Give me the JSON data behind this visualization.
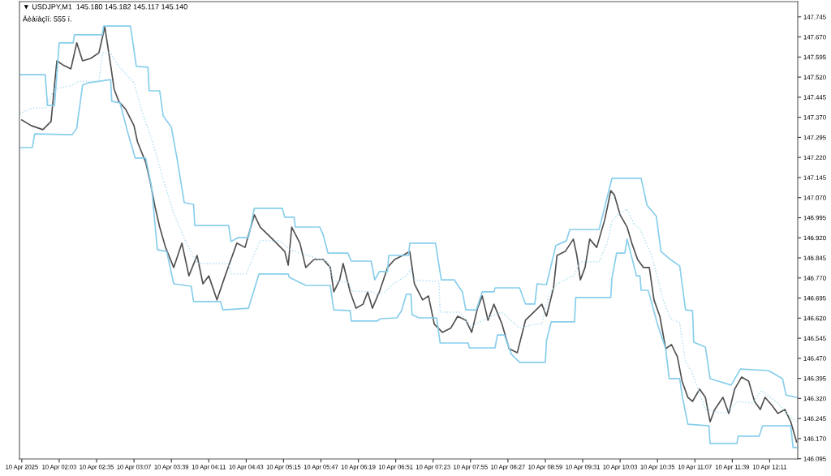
{
  "chart_data": {
    "type": "line",
    "title": "▼ USDJPY,M1  145.180 145.182 145.117 145.140",
    "subtitle": "Äèàïàçîí: 555 ï.",
    "series": [
      {
        "color": "#505050",
        "line_style": "solid",
        "x": [
          "2025-04-10T01:31",
          "2025-04-10T01:39",
          "2025-04-10T01:49",
          "2025-04-10T01:56",
          "2025-04-10T02:01",
          "2025-04-10T02:06",
          "2025-04-10T02:13",
          "2025-04-10T02:18",
          "2025-04-10T02:23",
          "2025-04-10T02:30",
          "2025-04-10T02:37",
          "2025-04-10T02:42",
          "2025-04-10T02:47",
          "2025-04-10T02:50",
          "2025-04-10T02:54",
          "2025-04-10T03:00",
          "2025-04-10T03:07",
          "2025-04-10T03:10",
          "2025-04-10T03:17",
          "2025-04-10T03:21",
          "2025-04-10T03:25",
          "2025-04-10T03:29",
          "2025-04-10T03:34",
          "2025-04-10T03:41",
          "2025-04-10T03:48",
          "2025-04-10T03:54",
          "2025-04-10T04:01",
          "2025-04-10T04:06",
          "2025-04-10T04:11",
          "2025-04-10T04:18",
          "2025-04-10T04:25",
          "2025-04-10T04:30",
          "2025-04-10T04:35",
          "2025-04-10T04:42",
          "2025-04-10T04:50",
          "2025-04-10T04:55",
          "2025-04-10T05:02",
          "2025-04-10T05:09",
          "2025-04-10T05:16",
          "2025-04-10T05:19",
          "2025-04-10T05:22",
          "2025-04-10T05:29",
          "2025-04-10T05:34",
          "2025-04-10T05:41",
          "2025-04-10T05:49",
          "2025-04-10T05:55",
          "2025-04-10T05:58",
          "2025-04-10T06:03",
          "2025-04-10T06:06",
          "2025-04-10T06:12",
          "2025-04-10T06:17",
          "2025-04-10T06:23",
          "2025-04-10T06:27",
          "2025-04-10T06:31",
          "2025-04-10T06:37",
          "2025-04-10T06:44",
          "2025-04-10T06:50",
          "2025-04-10T06:57",
          "2025-04-10T07:03",
          "2025-04-10T07:07",
          "2025-04-10T07:14",
          "2025-04-10T07:19",
          "2025-04-10T07:24",
          "2025-04-10T07:31",
          "2025-04-10T07:38",
          "2025-04-10T07:44",
          "2025-04-10T07:51",
          "2025-04-10T07:56",
          "2025-04-10T08:01",
          "2025-04-10T08:05",
          "2025-04-10T08:10",
          "2025-04-10T08:15",
          "2025-04-10T08:22",
          "2025-04-10T08:28",
          "2025-04-10T08:35",
          "2025-04-10T08:42",
          "2025-04-10T08:49",
          "2025-04-10T08:56",
          "2025-04-10T09:00",
          "2025-04-10T09:06",
          "2025-04-10T09:09",
          "2025-04-10T09:16",
          "2025-04-10T09:23",
          "2025-04-10T09:26",
          "2025-04-10T09:29",
          "2025-04-10T09:33",
          "2025-04-10T09:37",
          "2025-04-10T09:43",
          "2025-04-10T09:50",
          "2025-04-10T09:55",
          "2025-04-10T09:58",
          "2025-04-10T10:03",
          "2025-04-10T10:09",
          "2025-04-10T10:13",
          "2025-04-10T10:18",
          "2025-04-10T10:23",
          "2025-04-10T10:28",
          "2025-04-10T10:32",
          "2025-04-10T10:37",
          "2025-04-10T10:42",
          "2025-04-10T10:47",
          "2025-04-10T10:52",
          "2025-04-10T10:56",
          "2025-04-10T11:01",
          "2025-04-10T11:05",
          "2025-04-10T11:11",
          "2025-04-10T11:16",
          "2025-04-10T11:20",
          "2025-04-10T11:24",
          "2025-04-10T11:31",
          "2025-04-10T11:36",
          "2025-04-10T11:41",
          "2025-04-10T11:47",
          "2025-04-10T11:53",
          "2025-04-10T11:58",
          "2025-04-10T12:03",
          "2025-04-10T12:07",
          "2025-04-10T12:13",
          "2025-04-10T12:18",
          "2025-04-10T12:24",
          "2025-04-10T12:29",
          "2025-04-10T12:32",
          "2025-04-10T12:34"
        ],
        "values": [
          147.36,
          147.339,
          147.324,
          147.354,
          147.581,
          147.566,
          147.551,
          147.648,
          147.581,
          147.59,
          147.611,
          147.708,
          147.566,
          147.475,
          147.429,
          147.399,
          147.339,
          147.278,
          147.202,
          147.127,
          147.036,
          146.96,
          146.884,
          146.809,
          146.9,
          146.778,
          146.854,
          146.748,
          146.778,
          146.688,
          146.778,
          146.839,
          146.9,
          146.884,
          147.006,
          146.96,
          146.93,
          146.9,
          146.869,
          146.818,
          146.96,
          146.9,
          146.809,
          146.839,
          146.839,
          146.809,
          146.718,
          146.763,
          146.824,
          146.718,
          146.657,
          146.672,
          146.718,
          146.657,
          146.718,
          146.809,
          146.839,
          146.854,
          146.869,
          146.748,
          146.688,
          146.703,
          146.597,
          146.567,
          146.582,
          146.627,
          146.612,
          146.567,
          146.657,
          146.703,
          146.612,
          146.672,
          146.597,
          146.506,
          146.491,
          146.612,
          146.642,
          146.672,
          146.627,
          146.733,
          146.854,
          146.869,
          146.915,
          146.854,
          146.763,
          146.809,
          146.915,
          146.884,
          146.99,
          147.096,
          147.081,
          147.006,
          146.96,
          146.9,
          146.839,
          146.809,
          146.809,
          146.688,
          146.627,
          146.506,
          146.521,
          146.476,
          146.385,
          146.324,
          146.309,
          146.355,
          146.324,
          146.233,
          146.279,
          146.324,
          146.264,
          146.355,
          146.4,
          146.385,
          146.309,
          146.279,
          146.324,
          146.294,
          146.264,
          146.279,
          146.233,
          146.188,
          146.158
        ]
      },
      {
        "color": "#87ceeb",
        "line_style": "solid",
        "x": [
          "2025-04-10T01:29",
          "2025-04-10T01:51",
          "2025-04-10T01:53",
          "2025-04-10T01:59",
          "2025-04-10T02:03",
          "2025-04-10T02:15",
          "2025-04-10T02:16",
          "2025-04-10T02:40",
          "2025-04-10T02:41",
          "2025-04-10T03:04",
          "2025-04-10T03:09",
          "2025-04-10T03:19",
          "2025-04-10T03:20",
          "2025-04-10T03:29",
          "2025-04-10T03:32",
          "2025-04-10T03:39",
          "2025-04-10T03:44",
          "2025-04-10T03:50",
          "2025-04-10T03:58",
          "2025-04-10T03:59",
          "2025-04-10T04:28",
          "2025-04-10T04:30",
          "2025-04-10T04:36",
          "2025-04-10T04:45",
          "2025-04-10T04:50",
          "2025-04-10T05:14",
          "2025-04-10T05:16",
          "2025-04-10T05:24",
          "2025-04-10T05:25",
          "2025-04-10T05:46",
          "2025-04-10T05:49",
          "2025-04-10T05:53",
          "2025-04-10T06:10",
          "2025-04-10T06:13",
          "2025-04-10T06:30",
          "2025-04-10T06:33",
          "2025-04-10T06:37",
          "2025-04-10T06:44",
          "2025-04-10T06:45",
          "2025-04-10T07:02",
          "2025-04-10T07:03",
          "2025-04-10T07:25",
          "2025-04-10T07:30",
          "2025-04-10T07:41",
          "2025-04-10T07:48",
          "2025-04-10T07:51",
          "2025-04-10T08:00",
          "2025-04-10T08:05",
          "2025-04-10T08:15",
          "2025-04-10T08:16",
          "2025-04-10T08:37",
          "2025-04-10T08:42",
          "2025-04-10T08:50",
          "2025-04-10T08:52",
          "2025-04-10T09:00",
          "2025-04-10T09:08",
          "2025-04-10T09:17",
          "2025-04-10T09:20",
          "2025-04-10T09:45",
          "2025-04-10T09:56",
          "2025-04-10T10:21",
          "2025-04-10T10:26",
          "2025-04-10T10:34",
          "2025-04-10T10:38",
          "2025-04-10T10:46",
          "2025-04-10T10:54",
          "2025-04-10T10:59",
          "2025-04-10T11:05",
          "2025-04-10T11:06",
          "2025-04-10T11:16",
          "2025-04-10T11:20",
          "2025-04-10T11:38",
          "2025-04-10T11:46",
          "2025-04-10T12:10",
          "2025-04-10T12:22",
          "2025-04-10T12:25",
          "2025-04-10T12:34"
        ],
        "values": [
          147.529,
          147.529,
          147.414,
          147.414,
          147.648,
          147.648,
          147.678,
          147.678,
          147.711,
          147.711,
          147.56,
          147.557,
          147.469,
          147.469,
          147.375,
          147.333,
          147.212,
          147.051,
          147.045,
          146.966,
          146.966,
          146.906,
          146.921,
          146.921,
          147.03,
          147.03,
          146.997,
          146.997,
          146.96,
          146.96,
          146.93,
          146.863,
          146.863,
          146.833,
          146.833,
          146.763,
          146.794,
          146.794,
          146.854,
          146.854,
          146.9,
          146.9,
          146.763,
          146.763,
          146.718,
          146.651,
          146.651,
          146.718,
          146.718,
          146.733,
          146.733,
          146.673,
          146.673,
          146.748,
          146.745,
          146.891,
          146.909,
          146.951,
          146.951,
          147.142,
          147.142,
          147.042,
          147.0,
          146.869,
          146.839,
          146.815,
          146.651,
          146.648,
          146.53,
          146.512,
          146.394,
          146.37,
          146.43,
          146.424,
          146.394,
          146.333,
          146.324
        ]
      },
      {
        "color": "#87ceeb",
        "line_style": "solid",
        "x": [
          "2025-04-10T01:29",
          "2025-04-10T01:40",
          "2025-04-10T01:42",
          "2025-04-10T02:14",
          "2025-04-10T02:18",
          "2025-04-10T02:23",
          "2025-04-10T02:28",
          "2025-04-10T02:47",
          "2025-04-10T02:48",
          "2025-04-10T02:55",
          "2025-04-10T03:02",
          "2025-04-10T03:08",
          "2025-04-10T03:17",
          "2025-04-10T03:22",
          "2025-04-10T03:27",
          "2025-04-10T03:35",
          "2025-04-10T03:41",
          "2025-04-10T03:56",
          "2025-04-10T03:58",
          "2025-04-10T04:21",
          "2025-04-10T04:23",
          "2025-04-10T04:45",
          "2025-04-10T04:54",
          "2025-04-10T05:19",
          "2025-04-10T05:20",
          "2025-04-10T05:34",
          "2025-04-10T05:55",
          "2025-04-10T05:58",
          "2025-04-10T06:12",
          "2025-04-10T06:13",
          "2025-04-10T06:35",
          "2025-04-10T06:38",
          "2025-04-10T06:52",
          "2025-04-10T06:56",
          "2025-04-10T07:00",
          "2025-04-10T07:04",
          "2025-04-10T07:05",
          "2025-04-10T07:11",
          "2025-04-10T07:26",
          "2025-04-10T07:29",
          "2025-04-10T07:53",
          "2025-04-10T07:54",
          "2025-04-10T08:16",
          "2025-04-10T08:18",
          "2025-04-10T08:24",
          "2025-04-10T08:30",
          "2025-04-10T08:37",
          "2025-04-10T08:59",
          "2025-04-10T09:00",
          "2025-04-10T09:04",
          "2025-04-10T09:24",
          "2025-04-10T09:25",
          "2025-04-10T09:55",
          "2025-04-10T09:56",
          "2025-04-10T10:00",
          "2025-04-10T10:07",
          "2025-04-10T10:09",
          "2025-04-10T10:17",
          "2025-04-10T10:20",
          "2025-04-10T10:21",
          "2025-04-10T10:27",
          "2025-04-10T10:28",
          "2025-04-10T10:35",
          "2025-04-10T10:42",
          "2025-04-10T10:45",
          "2025-04-10T10:54",
          "2025-04-10T10:56",
          "2025-04-10T11:01",
          "2025-04-10T11:19",
          "2025-04-10T11:20",
          "2025-04-10T11:43",
          "2025-04-10T11:44",
          "2025-04-10T12:02",
          "2025-04-10T12:05",
          "2025-04-10T12:29",
          "2025-04-10T12:31",
          "2025-04-10T12:34"
        ],
        "values": [
          147.257,
          147.257,
          147.308,
          147.305,
          147.33,
          147.49,
          147.499,
          147.511,
          147.43,
          147.424,
          147.308,
          147.218,
          147.218,
          147.112,
          146.875,
          146.869,
          146.748,
          146.739,
          146.682,
          146.682,
          146.651,
          146.657,
          146.785,
          146.785,
          146.772,
          146.742,
          146.742,
          146.651,
          146.648,
          146.609,
          146.609,
          146.618,
          146.621,
          146.648,
          146.709,
          146.709,
          146.633,
          146.621,
          146.621,
          146.527,
          146.527,
          146.509,
          146.509,
          146.557,
          146.557,
          146.485,
          146.455,
          146.455,
          146.536,
          146.606,
          146.606,
          146.697,
          146.697,
          146.769,
          146.863,
          146.863,
          146.915,
          146.778,
          146.778,
          146.724,
          146.724,
          146.709,
          146.597,
          146.506,
          146.394,
          146.394,
          146.333,
          146.224,
          146.218,
          146.152,
          146.152,
          146.179,
          146.179,
          146.218,
          146.218,
          146.137,
          146.137
        ]
      },
      {
        "color": "#a8dcf0",
        "line_style": "dotted",
        "x": [
          "2025-04-10T01:29",
          "2025-04-10T01:40",
          "2025-04-10T01:51",
          "2025-04-10T01:59",
          "2025-04-10T02:14",
          "2025-04-10T02:20",
          "2025-04-10T02:37",
          "2025-04-10T02:40",
          "2025-04-10T02:47",
          "2025-04-10T02:53",
          "2025-04-10T03:07",
          "2025-04-10T03:14",
          "2025-04-10T03:24",
          "2025-04-10T03:31",
          "2025-04-10T03:41",
          "2025-04-10T03:51",
          "2025-04-10T04:01",
          "2025-04-10T04:28",
          "2025-04-10T04:30",
          "2025-04-10T04:43",
          "2025-04-10T04:50",
          "2025-04-10T04:55",
          "2025-04-10T05:12",
          "2025-04-10T05:21",
          "2025-04-10T05:29",
          "2025-04-10T05:53",
          "2025-04-10T05:58",
          "2025-04-10T06:11",
          "2025-04-10T06:13",
          "2025-04-10T06:31",
          "2025-04-10T06:35",
          "2025-04-10T06:42",
          "2025-04-10T06:49",
          "2025-04-10T07:00",
          "2025-04-10T07:04",
          "2025-04-10T07:06",
          "2025-04-10T07:28",
          "2025-04-10T07:29",
          "2025-04-10T07:46",
          "2025-04-10T07:55",
          "2025-04-10T08:03",
          "2025-04-10T08:13",
          "2025-04-10T08:22",
          "2025-04-10T08:28",
          "2025-04-10T08:37",
          "2025-04-10T08:49",
          "2025-04-10T08:56",
          "2025-04-10T09:02",
          "2025-04-10T09:09",
          "2025-04-10T09:23",
          "2025-04-10T09:29",
          "2025-04-10T09:45",
          "2025-04-10T09:52",
          "2025-04-10T09:56",
          "2025-04-10T10:01",
          "2025-04-10T10:09",
          "2025-04-10T10:15",
          "2025-04-10T10:20",
          "2025-04-10T10:30",
          "2025-04-10T10:40",
          "2025-04-10T10:46",
          "2025-04-10T10:54",
          "2025-04-10T10:59",
          "2025-04-10T11:04",
          "2025-04-10T11:16",
          "2025-04-10T11:33",
          "2025-04-10T11:44",
          "2025-04-10T11:56",
          "2025-04-10T12:04",
          "2025-04-10T12:18",
          "2025-04-10T12:27",
          "2025-04-10T12:34"
        ],
        "values": [
          147.384,
          147.405,
          147.405,
          147.475,
          147.49,
          147.505,
          147.505,
          147.611,
          147.611,
          147.566,
          147.499,
          147.39,
          147.263,
          147.151,
          147.012,
          146.909,
          146.824,
          146.824,
          146.785,
          146.785,
          146.86,
          146.909,
          146.909,
          146.875,
          146.863,
          146.83,
          146.757,
          146.754,
          146.721,
          146.718,
          146.706,
          146.718,
          146.748,
          146.778,
          146.803,
          146.763,
          146.757,
          146.642,
          146.642,
          146.588,
          146.606,
          146.627,
          146.642,
          146.618,
          146.582,
          146.597,
          146.597,
          146.709,
          146.748,
          146.778,
          146.83,
          146.83,
          146.9,
          146.981,
          147.006,
          147.027,
          146.969,
          146.954,
          146.854,
          146.688,
          146.618,
          146.603,
          146.455,
          146.424,
          146.279,
          146.264,
          146.309,
          146.303,
          146.349,
          146.303,
          146.258,
          146.233
        ]
      }
    ],
    "xlim": [
      "2025-04-10T01:29",
      "2025-04-10T12:35"
    ],
    "xticks": [
      {
        "value": "2025-04-10T01:31",
        "label": "10 Apr 2025"
      },
      {
        "value": "2025-04-10T02:03",
        "label": "10 Apr 02:03"
      },
      {
        "value": "2025-04-10T02:35",
        "label": "10 Apr 02:35"
      },
      {
        "value": "2025-04-10T03:07",
        "label": "10 Apr 03:07"
      },
      {
        "value": "2025-04-10T03:39",
        "label": "10 Apr 03:39"
      },
      {
        "value": "2025-04-10T04:11",
        "label": "10 Apr 04:11"
      },
      {
        "value": "2025-04-10T04:43",
        "label": "10 Apr 04:43"
      },
      {
        "value": "2025-04-10T05:15",
        "label": "10 Apr 05:15"
      },
      {
        "value": "2025-04-10T05:47",
        "label": "10 Apr 05:47"
      },
      {
        "value": "2025-04-10T06:19",
        "label": "10 Apr 06:19"
      },
      {
        "value": "2025-04-10T06:51",
        "label": "10 Apr 06:51"
      },
      {
        "value": "2025-04-10T07:23",
        "label": "10 Apr 07:23"
      },
      {
        "value": "2025-04-10T07:55",
        "label": "10 Apr 07:55"
      },
      {
        "value": "2025-04-10T08:27",
        "label": "10 Apr 08:27"
      },
      {
        "value": "2025-04-10T08:59",
        "label": "10 Apr 08:59"
      },
      {
        "value": "2025-04-10T09:31",
        "label": "10 Apr 09:31"
      },
      {
        "value": "2025-04-10T10:03",
        "label": "10 Apr 10:03"
      },
      {
        "value": "2025-04-10T10:35",
        "label": "10 Apr 10:35"
      },
      {
        "value": "2025-04-10T11:07",
        "label": "10 Apr 11:07"
      },
      {
        "value": "2025-04-10T11:39",
        "label": "10 Apr 11:39"
      },
      {
        "value": "2025-04-10T12:11",
        "label": "10 Apr 12:11"
      }
    ],
    "ylim": [
      146.094,
      147.802
    ],
    "yticks": [
      {
        "value": 146.095,
        "label": "146.095"
      },
      {
        "value": 146.17,
        "label": "146.170"
      },
      {
        "value": 146.245,
        "label": "146.245"
      },
      {
        "value": 146.32,
        "label": "146.320"
      },
      {
        "value": 146.395,
        "label": "146.395"
      },
      {
        "value": 146.47,
        "label": "146.470"
      },
      {
        "value": 146.545,
        "label": "146.545"
      },
      {
        "value": 146.62,
        "label": "146.620"
      },
      {
        "value": 146.695,
        "label": "146.695"
      },
      {
        "value": 146.77,
        "label": "146.770"
      },
      {
        "value": 146.845,
        "label": "146.845"
      },
      {
        "value": 146.92,
        "label": "146.920"
      },
      {
        "value": 146.995,
        "label": "146.995"
      },
      {
        "value": 147.07,
        "label": "147.070"
      },
      {
        "value": 147.145,
        "label": "147.145"
      },
      {
        "value": 147.22,
        "label": "147.220"
      },
      {
        "value": 147.295,
        "label": "147.295"
      },
      {
        "value": 147.37,
        "label": "147.370"
      },
      {
        "value": 147.445,
        "label": "147.445"
      },
      {
        "value": 147.52,
        "label": "147.520"
      },
      {
        "value": 147.595,
        "label": "147.595"
      },
      {
        "value": 147.67,
        "label": "147.670"
      },
      {
        "value": 147.745,
        "label": "147.745"
      }
    ],
    "grid": false,
    "legend": false
  }
}
